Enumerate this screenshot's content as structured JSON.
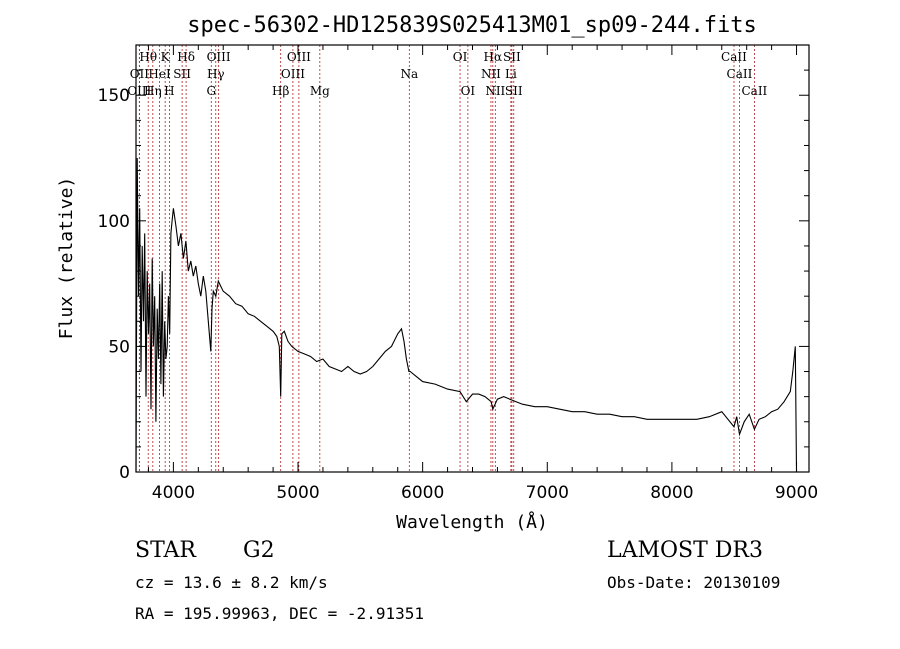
{
  "chart_data": {
    "type": "line",
    "title": "spec-56302-HD125839S025413M01_sp09-244.fits",
    "xlabel": "Wavelength (Å)",
    "ylabel": "Flux (relative)",
    "xlim": [
      3700,
      9100
    ],
    "ylim": [
      0,
      170
    ],
    "xticks": [
      4000,
      5000,
      6000,
      7000,
      8000,
      9000
    ],
    "yticks": [
      0,
      50,
      100,
      150
    ],
    "series": [
      {
        "name": "flux",
        "x": [
          3700,
          3710,
          3720,
          3730,
          3740,
          3750,
          3760,
          3770,
          3780,
          3790,
          3800,
          3810,
          3820,
          3830,
          3840,
          3850,
          3860,
          3870,
          3880,
          3890,
          3900,
          3910,
          3920,
          3930,
          3940,
          3950,
          3960,
          3970,
          3980,
          3990,
          4000,
          4020,
          4040,
          4060,
          4080,
          4100,
          4120,
          4140,
          4160,
          4180,
          4200,
          4220,
          4240,
          4260,
          4280,
          4300,
          4310,
          4320,
          4340,
          4360,
          4380,
          4400,
          4450,
          4500,
          4550,
          4600,
          4650,
          4700,
          4750,
          4800,
          4830,
          4850,
          4861,
          4870,
          4890,
          4920,
          4950,
          5000,
          5050,
          5100,
          5150,
          5200,
          5250,
          5300,
          5350,
          5400,
          5450,
          5500,
          5550,
          5600,
          5650,
          5700,
          5750,
          5800,
          5830,
          5850,
          5870,
          5890,
          5900,
          5950,
          6000,
          6100,
          6200,
          6300,
          6350,
          6400,
          6450,
          6500,
          6550,
          6563,
          6600,
          6650,
          6700,
          6750,
          6800,
          6900,
          7000,
          7100,
          7200,
          7300,
          7400,
          7500,
          7600,
          7700,
          7800,
          7900,
          8000,
          8100,
          8200,
          8300,
          8400,
          8498,
          8520,
          8542,
          8580,
          8620,
          8662,
          8700,
          8750,
          8800,
          8850,
          8900,
          8950,
          8970,
          8990,
          9000
        ],
        "y": [
          0,
          125,
          70,
          105,
          40,
          90,
          60,
          95,
          30,
          80,
          55,
          75,
          25,
          85,
          50,
          70,
          20,
          65,
          45,
          75,
          35,
          80,
          30,
          60,
          45,
          50,
          70,
          55,
          95,
          100,
          105,
          98,
          90,
          95,
          85,
          92,
          80,
          84,
          78,
          82,
          75,
          70,
          78,
          72,
          60,
          48,
          65,
          72,
          70,
          76,
          74,
          72,
          70,
          67,
          66,
          63,
          62,
          60,
          58,
          56,
          54,
          50,
          30,
          55,
          56,
          52,
          50,
          48,
          47,
          46,
          44,
          45,
          42,
          41,
          40,
          42,
          40,
          39,
          40,
          42,
          45,
          48,
          50,
          55,
          57,
          52,
          45,
          40,
          40,
          38,
          36,
          35,
          33,
          32,
          28,
          31,
          31,
          30,
          28,
          25,
          29,
          30,
          29,
          28,
          27,
          26,
          26,
          25,
          24,
          24,
          23,
          23,
          22,
          22,
          21,
          21,
          21,
          21,
          21,
          22,
          24,
          18,
          22,
          15,
          20,
          23,
          17,
          21,
          22,
          24,
          25,
          28,
          32,
          40,
          50,
          0
        ]
      }
    ],
    "spectral_lines": [
      {
        "label": "Hθ",
        "wl": 3798,
        "row": 0
      },
      {
        "label": "OII",
        "wl": 3727,
        "row": 1
      },
      {
        "label": "OIII",
        "wl": 3727,
        "row": 2
      },
      {
        "label": "K",
        "wl": 3934,
        "row": 0
      },
      {
        "label": "HeI",
        "wl": 3889,
        "row": 1
      },
      {
        "label": "Hη",
        "wl": 3835,
        "row": 2
      },
      {
        "label": "Hδ",
        "wl": 4102,
        "row": 0
      },
      {
        "label": "SII",
        "wl": 4070,
        "row": 1
      },
      {
        "label": "H",
        "wl": 3968,
        "row": 2
      },
      {
        "label": "OIII",
        "wl": 4363,
        "row": 0
      },
      {
        "label": "Hγ",
        "wl": 4340,
        "row": 1
      },
      {
        "label": "G",
        "wl": 4304,
        "row": 2
      },
      {
        "label": "OIII",
        "wl": 5007,
        "row": 0
      },
      {
        "label": "OIII",
        "wl": 4959,
        "row": 1
      },
      {
        "label": "Hβ",
        "wl": 4861,
        "row": 2
      },
      {
        "label": "Mg",
        "wl": 5175,
        "row": 2
      },
      {
        "label": "Na",
        "wl": 5893,
        "row": 1
      },
      {
        "label": "OI",
        "wl": 6300,
        "row": 0
      },
      {
        "label": "OI",
        "wl": 6363,
        "row": 2
      },
      {
        "label": "Hα",
        "wl": 6563,
        "row": 0
      },
      {
        "label": "SII",
        "wl": 6716,
        "row": 0
      },
      {
        "label": "NII",
        "wl": 6548,
        "row": 1
      },
      {
        "label": "Li",
        "wl": 6708,
        "row": 1
      },
      {
        "label": "NII",
        "wl": 6583,
        "row": 2
      },
      {
        "label": "SII",
        "wl": 6731,
        "row": 2
      },
      {
        "label": "CaII",
        "wl": 8498,
        "row": 0
      },
      {
        "label": "CaII",
        "wl": 8542,
        "row": 1
      },
      {
        "label": "CaII",
        "wl": 8662,
        "row": 2
      }
    ]
  },
  "info": {
    "class": "STAR",
    "subclass": "G2",
    "survey": "LAMOST DR3",
    "cz": "cz = 13.6 ± 8.2 km/s",
    "obsdate": "Obs-Date: 20130109",
    "radec": "RA = 195.99963, DEC =  -2.91351"
  },
  "colors": {
    "lines": "#b22222",
    "spectrum": "#000000"
  }
}
